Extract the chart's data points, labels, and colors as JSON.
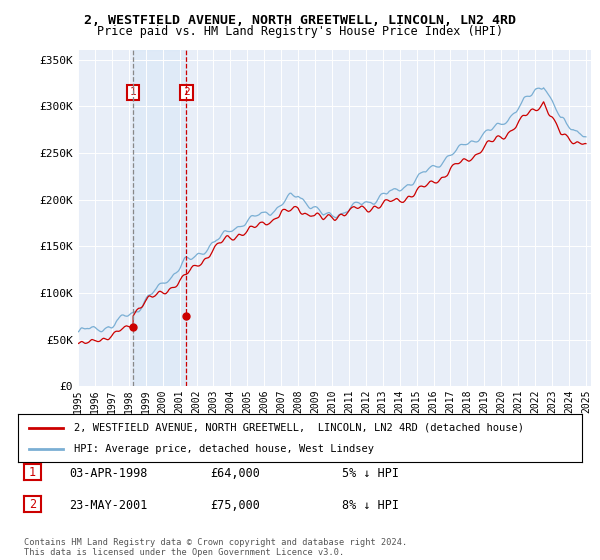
{
  "title": "2, WESTFIELD AVENUE, NORTH GREETWELL, LINCOLN, LN2 4RD",
  "subtitle": "Price paid vs. HM Land Registry's House Price Index (HPI)",
  "ylim": [
    0,
    360000
  ],
  "yticks": [
    0,
    50000,
    100000,
    150000,
    200000,
    250000,
    300000,
    350000
  ],
  "ytick_labels": [
    "£0",
    "£50K",
    "£100K",
    "£150K",
    "£200K",
    "£250K",
    "£300K",
    "£350K"
  ],
  "purchase1": {
    "date": "03-APR-1998",
    "price": 64000,
    "label": "1",
    "hpi_diff": "5% ↓ HPI",
    "year": 1998.25
  },
  "purchase2": {
    "date": "23-MAY-2001",
    "price": 75000,
    "label": "2",
    "hpi_diff": "8% ↓ HPI",
    "year": 2001.4
  },
  "hpi_color": "#7bafd4",
  "price_color": "#cc0000",
  "vline1_color": "#888888",
  "vline2_color": "#cc0000",
  "box_color": "#cc0000",
  "shade_color": "#d0e4f7",
  "legend_label_price": "2, WESTFIELD AVENUE, NORTH GREETWELL,  LINCOLN, LN2 4RD (detached house)",
  "legend_label_hpi": "HPI: Average price, detached house, West Lindsey",
  "footer": "Contains HM Land Registry data © Crown copyright and database right 2024.\nThis data is licensed under the Open Government Licence v3.0.",
  "background_color": "#e8eef8"
}
